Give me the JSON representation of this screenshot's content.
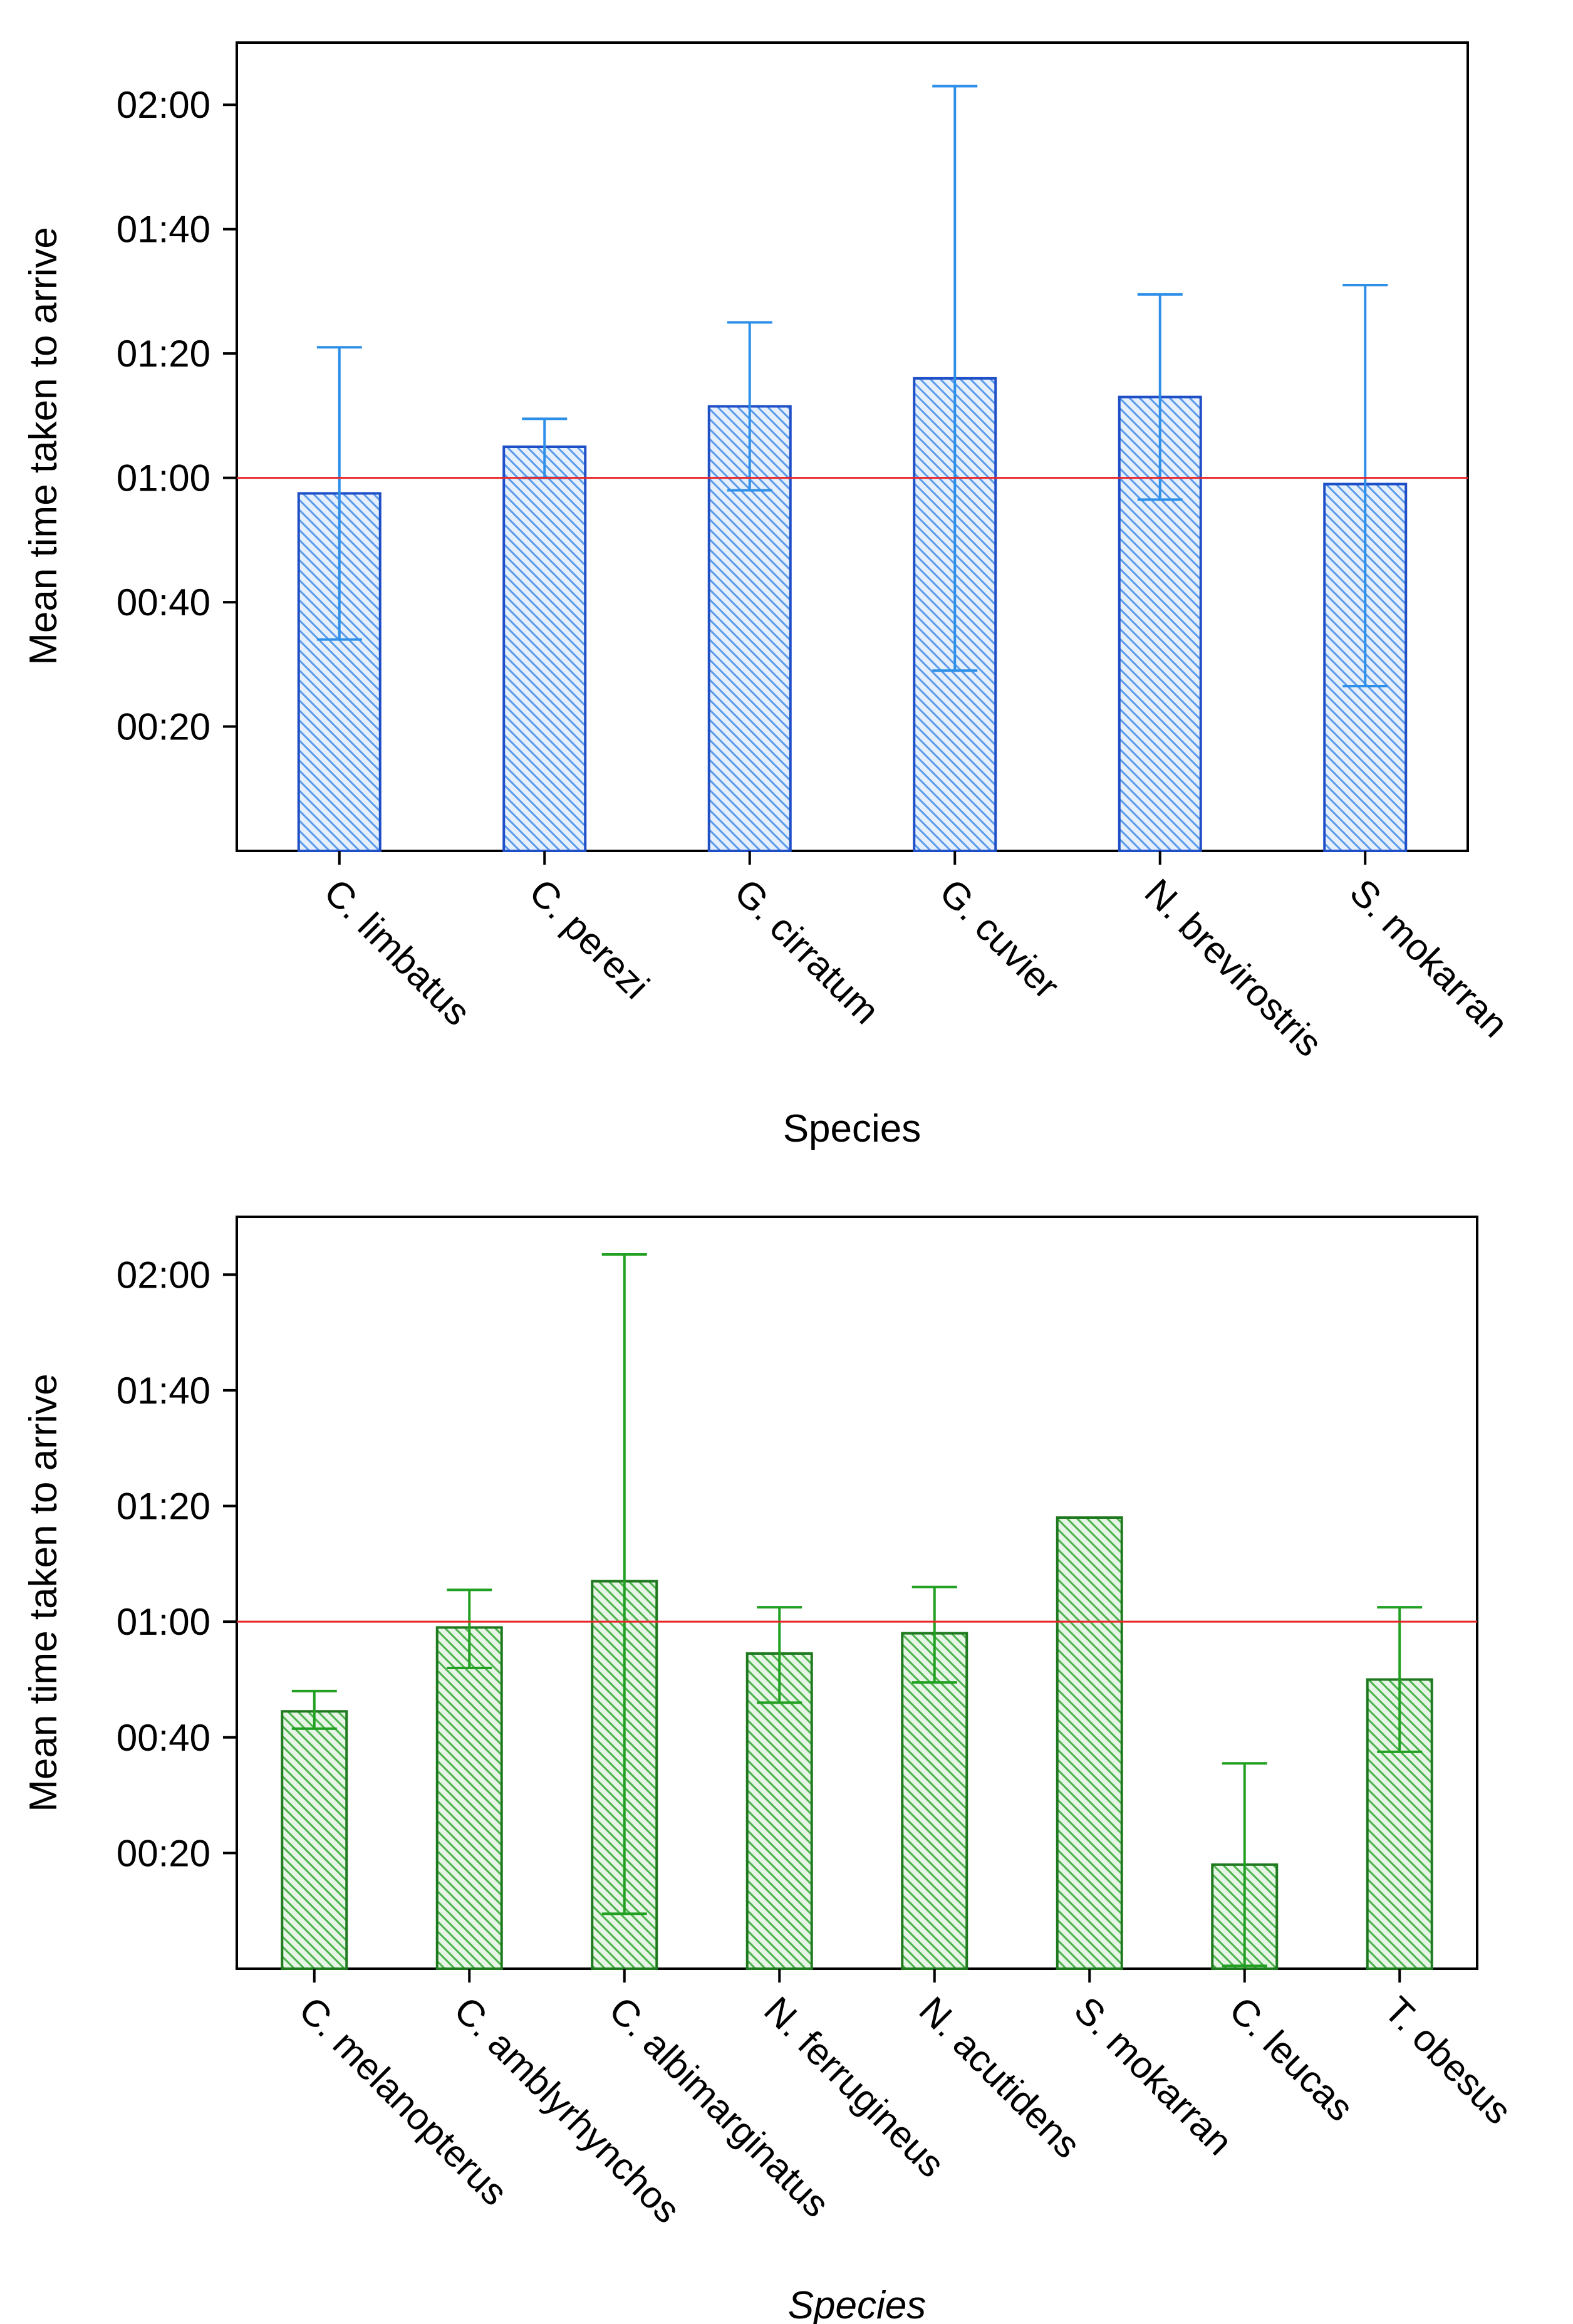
{
  "chart_data": [
    {
      "type": "bar",
      "xlabel": "Species",
      "ylabel": "Mean time taken to arrive",
      "ylim": [
        0,
        130
      ],
      "y_unit": "seconds",
      "yticks": [
        {
          "value": 20,
          "label": "00:20"
        },
        {
          "value": 40,
          "label": "00:40"
        },
        {
          "value": 60,
          "label": "01:00"
        },
        {
          "value": 80,
          "label": "01:20"
        },
        {
          "value": 100,
          "label": "01:40"
        },
        {
          "value": 120,
          "label": "02:00"
        }
      ],
      "reference_line": 60,
      "reference_color": "#e8262a",
      "bar_color": "#1f4fc6",
      "fill_color": "#5b9bea",
      "error_color": "#2e8fe8",
      "categories": [
        "C. limbatus",
        "C. perezi",
        "G. cirratum",
        "G. cuvier",
        "N. brevirostris",
        "S. mokarran"
      ],
      "values": [
        57.5,
        65,
        71.5,
        76,
        73,
        59
      ],
      "errors": [
        [
          34,
          81
        ],
        [
          60,
          69.5
        ],
        [
          58,
          85
        ],
        [
          29,
          123
        ],
        [
          56.5,
          89.5
        ],
        [
          26.5,
          91
        ]
      ]
    },
    {
      "type": "bar",
      "xlabel": "Species",
      "ylabel": "Mean time taken to arrive",
      "ylim": [
        0,
        130
      ],
      "y_unit": "seconds",
      "yticks": [
        {
          "value": 20,
          "label": "00:20"
        },
        {
          "value": 40,
          "label": "00:40"
        },
        {
          "value": 60,
          "label": "01:00"
        },
        {
          "value": 80,
          "label": "01:20"
        },
        {
          "value": 100,
          "label": "01:40"
        },
        {
          "value": 120,
          "label": "02:00"
        }
      ],
      "reference_line": 60,
      "reference_color": "#e8262a",
      "bar_color": "#1f7a1f",
      "fill_color": "#4db34d",
      "error_color": "#22a022",
      "categories": [
        "C. melanopterus",
        "C. amblyrhynchos",
        "C. albimarginatus",
        "N. ferrugineus",
        "N. acutidens",
        "S. mokarran",
        "C. leucas",
        "T. obesus"
      ],
      "values": [
        44.5,
        59,
        67,
        54.5,
        58,
        78,
        18,
        50
      ],
      "errors": [
        [
          41.5,
          48
        ],
        [
          52,
          65.5
        ],
        [
          9.5,
          123.5
        ],
        [
          46,
          62.5
        ],
        [
          49.5,
          66
        ],
        null,
        [
          0.5,
          35.5
        ],
        [
          37.5,
          62.5
        ]
      ]
    }
  ]
}
